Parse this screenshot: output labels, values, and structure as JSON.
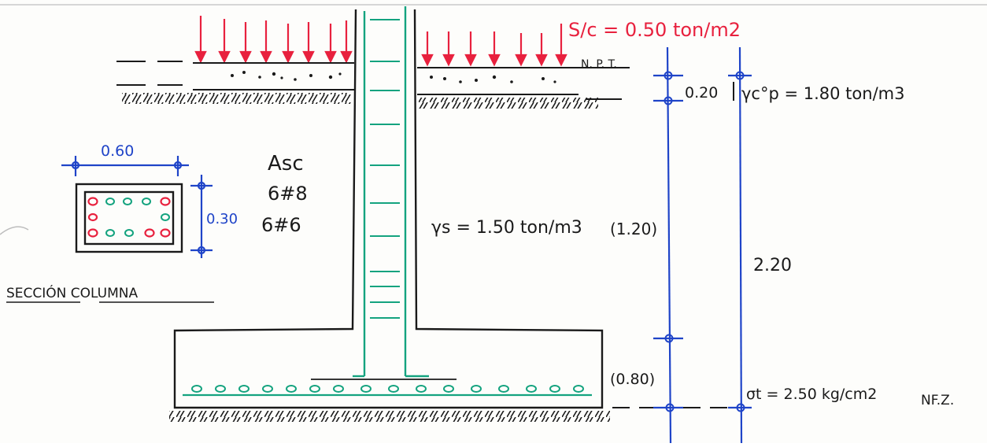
{
  "surcharge": "S/c = 0.50 ton/m2",
  "floor_label": "N. P. T.",
  "slab_weight": "γc°p = 1.80 ton/m3",
  "soil_weight": "γs = 1.50 ton/m3",
  "bearing_capacity": "σt = 2.50 kg/cm2",
  "water_table": "NF.Z.",
  "dims": {
    "slab_thickness": "0.20",
    "soil_height": "(1.20)",
    "total_height": "2.20",
    "footing_height": "(0.80)"
  },
  "column_section": {
    "title": "SECCIÓN COLUMNA",
    "width": "0.60",
    "depth": "0.30",
    "steel_title": "Asc",
    "bars_main": "6#8",
    "bars_secondary": "6#6"
  },
  "colors": {
    "load": "#e8213e",
    "dimension": "#1f44c8",
    "rebar": "#14a37f",
    "rebar_section": "#e8213e",
    "ink": "#1a1a1a"
  }
}
